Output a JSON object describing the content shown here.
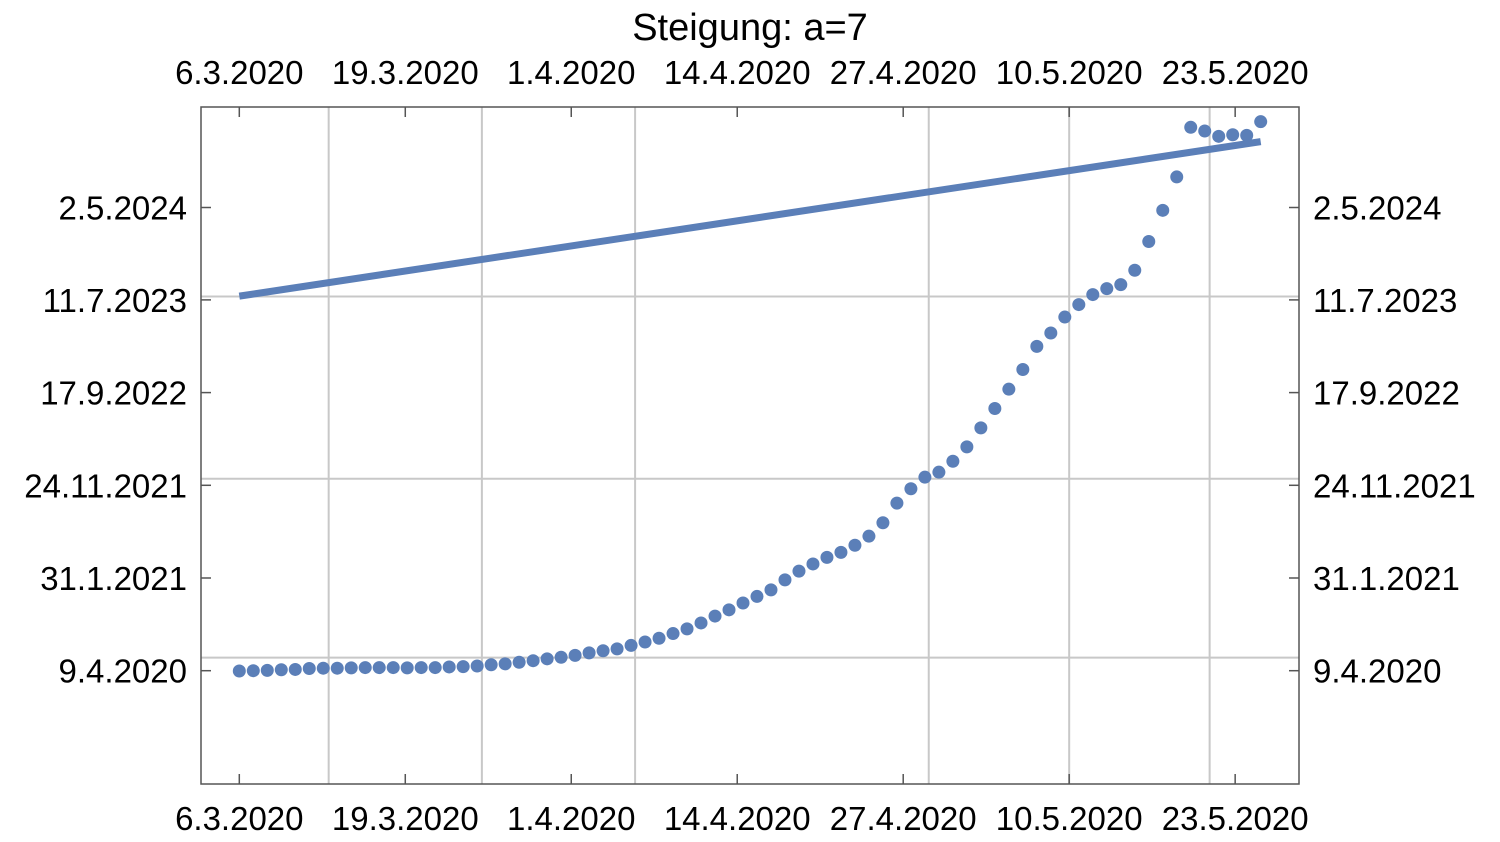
{
  "chart_data": {
    "type": "scatter",
    "title": "Steigung: a=7",
    "xlabel": "",
    "ylabel": "",
    "x_start_date": "2020-03-06",
    "x_end_date": "2020-05-25",
    "xlim": [
      "2020-03-03",
      "2020-05-28"
    ],
    "ylim": [
      "2019-04-12",
      "2025-03-20"
    ],
    "x_ticks": [
      "6.3.2020",
      "19.3.2020",
      "1.4.2020",
      "14.4.2020",
      "27.4.2020",
      "10.5.2020",
      "23.5.2020"
    ],
    "y_ticks": [
      "9.4.2020",
      "31.1.2021",
      "24.11.2021",
      "17.9.2022",
      "11.7.2023",
      "2.5.2024"
    ],
    "x_tick_values": [
      "2020-03-06",
      "2020-03-19",
      "2020-04-01",
      "2020-04-14",
      "2020-04-27",
      "2020-05-10",
      "2020-05-23"
    ],
    "y_tick_values": [
      "2020-04-09",
      "2021-01-31",
      "2021-11-24",
      "2022-09-17",
      "2023-07-11",
      "2024-05-02"
    ],
    "x_gridlines": [
      "2020-03-13",
      "2020-03-25",
      "2020-04-06",
      "2020-04-29",
      "2020-05-10",
      "2020-05-21"
    ],
    "y_gridlines": [
      "2020-05-21",
      "2021-12-15",
      "2023-07-22"
    ],
    "line": {
      "from": [
        "2020-03-06",
        "2023-07-23"
      ],
      "to": [
        "2020-05-25",
        "2024-11-29"
      ]
    },
    "series": [
      {
        "values": [
          "2020-04-08",
          "2020-04-09",
          "2020-04-10",
          "2020-04-12",
          "2020-04-13",
          "2020-04-16",
          "2020-04-17",
          "2020-04-17",
          "2020-04-18",
          "2020-04-19",
          "2020-04-19",
          "2020-04-19",
          "2020-04-18",
          "2020-04-19",
          "2020-04-19",
          "2020-04-21",
          "2020-04-22",
          "2020-04-24",
          "2020-04-28",
          "2020-05-01",
          "2020-05-06",
          "2020-05-11",
          "2020-05-17",
          "2020-05-22",
          "2020-05-28",
          "2020-06-05",
          "2020-06-12",
          "2020-06-18",
          "2020-06-29",
          "2020-07-10",
          "2020-07-22",
          "2020-08-06",
          "2020-08-21",
          "2020-09-09",
          "2020-10-01",
          "2020-10-21",
          "2020-11-12",
          "2020-12-03",
          "2020-12-24",
          "2021-01-25",
          "2021-02-22",
          "2021-03-17",
          "2021-04-07",
          "2021-04-23",
          "2021-05-16",
          "2021-06-14",
          "2021-07-27",
          "2021-09-28",
          "2021-11-13",
          "2021-12-20",
          "2022-01-05",
          "2022-02-09",
          "2022-03-27",
          "2022-05-27",
          "2022-07-28",
          "2022-09-28",
          "2022-11-30",
          "2023-02-12",
          "2023-03-27",
          "2023-05-17",
          "2023-06-26",
          "2023-07-28",
          "2023-08-16",
          "2023-08-29",
          "2023-10-14",
          "2024-01-14",
          "2024-04-23",
          "2024-08-08",
          "2025-01-14",
          "2025-01-02",
          "2024-12-16",
          "2024-12-21",
          "2024-12-19",
          "2025-02-01"
        ]
      }
    ],
    "grid": true
  },
  "colors": {
    "series": "#5b7fb8",
    "grid": "#c8c8c8",
    "frame": "#555555"
  }
}
